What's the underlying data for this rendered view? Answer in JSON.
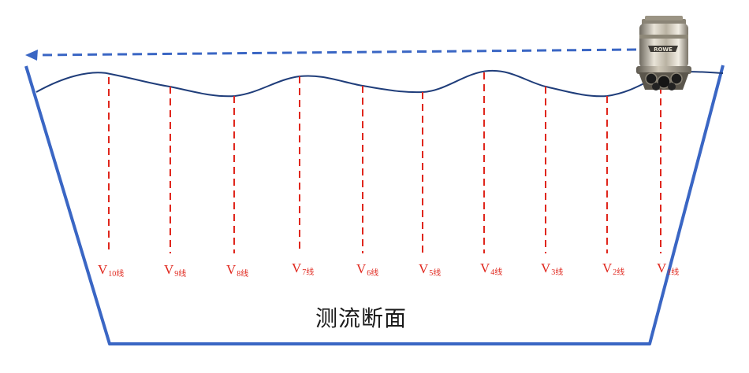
{
  "section_title": "测流断面",
  "verticals": [
    {
      "letter": "V",
      "sub": "10线"
    },
    {
      "letter": "V",
      "sub": "9线"
    },
    {
      "letter": "V",
      "sub": "8线"
    },
    {
      "letter": "V",
      "sub": "7线"
    },
    {
      "letter": "V",
      "sub": "6线"
    },
    {
      "letter": "V",
      "sub": "5线"
    },
    {
      "letter": "V",
      "sub": "4线"
    },
    {
      "letter": "V",
      "sub": "3线"
    },
    {
      "letter": "V",
      "sub": "2线"
    },
    {
      "letter": "V",
      "sub": "1线"
    }
  ],
  "device_brand": "ROWE",
  "colors": {
    "channel": "#3a66c4",
    "water_surface": "#1f3d7a",
    "vertical_lines": "#e0261c",
    "direction_arrow": "#3a66c4",
    "title": "#1a1a1a"
  }
}
